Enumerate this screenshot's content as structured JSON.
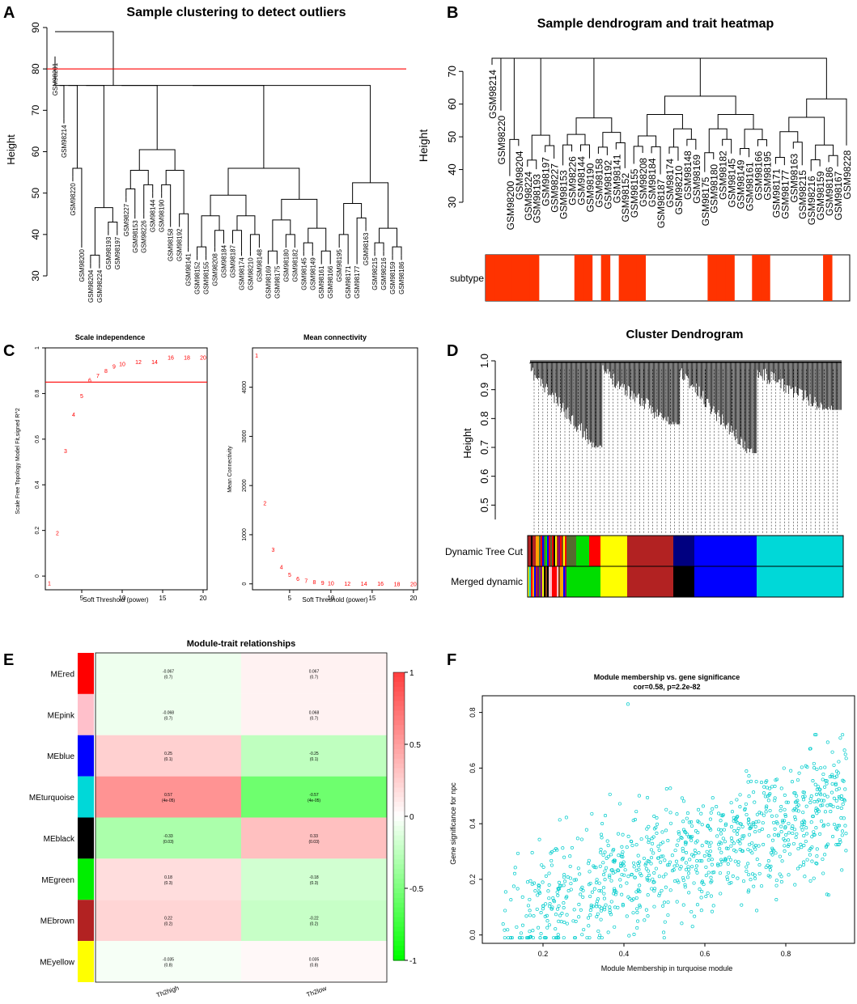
{
  "colors": {
    "red": "#ff0000",
    "orange_red": "#ff3300",
    "turquoise": "#00d8d8",
    "blue": "#0000ff",
    "brown": "#b22222",
    "yellow": "#ffff00",
    "green": "#00dd00",
    "black": "#000000",
    "pink": "#ffc0cb"
  },
  "panels": {
    "a": "A",
    "b": "B",
    "c": "C",
    "d": "D",
    "e": "E",
    "f": "F"
  },
  "panel_a": {
    "title": "Sample clustering to detect outliers",
    "ylabel": "Height",
    "yticks": [
      30,
      40,
      50,
      60,
      70,
      80,
      90
    ],
    "cut_height": 80,
    "leaves": [
      {
        "label": "GSM98201",
        "h": 83
      },
      {
        "label": "GSM98214",
        "h": 68
      },
      {
        "label": "GSM98220",
        "h": 54
      },
      {
        "label": "GSM98200",
        "h": 38
      },
      {
        "label": "GSM98204",
        "h": 33
      },
      {
        "label": "GSM98224",
        "h": 33
      },
      {
        "label": "GSM98193",
        "h": 41
      },
      {
        "label": "GSM98197",
        "h": 41
      },
      {
        "label": "GSM98227",
        "h": 49
      },
      {
        "label": "GSM98153",
        "h": 45
      },
      {
        "label": "GSM98226",
        "h": 45
      },
      {
        "label": "GSM98144",
        "h": 50
      },
      {
        "label": "GSM98190",
        "h": 50
      },
      {
        "label": "GSM98158",
        "h": 43
      },
      {
        "label": "GSM98192",
        "h": 43
      },
      {
        "label": "GSM98141",
        "h": 37
      },
      {
        "label": "GSM98152",
        "h": 35
      },
      {
        "label": "GSM98155",
        "h": 35
      },
      {
        "label": "GSM98208",
        "h": 37
      },
      {
        "label": "GSM98184",
        "h": 39
      },
      {
        "label": "GSM98187",
        "h": 39
      },
      {
        "label": "GSM98174",
        "h": 36
      },
      {
        "label": "GSM98210",
        "h": 36
      },
      {
        "label": "GSM98148",
        "h": 38
      },
      {
        "label": "GSM98169",
        "h": 34
      },
      {
        "label": "GSM98175",
        "h": 34
      },
      {
        "label": "GSM98180",
        "h": 38
      },
      {
        "label": "GSM98182",
        "h": 38
      },
      {
        "label": "GSM98145",
        "h": 36
      },
      {
        "label": "GSM98149",
        "h": 36
      },
      {
        "label": "GSM98161",
        "h": 34
      },
      {
        "label": "GSM98166",
        "h": 34
      },
      {
        "label": "GSM98195",
        "h": 38
      },
      {
        "label": "GSM98171",
        "h": 34
      },
      {
        "label": "GSM98177",
        "h": 34
      },
      {
        "label": "GSM98163",
        "h": 42
      },
      {
        "label": "GSM98215",
        "h": 36
      },
      {
        "label": "GSM98216",
        "h": 36
      },
      {
        "label": "GSM98159",
        "h": 35
      },
      {
        "label": "GSM98186",
        "h": 35
      }
    ]
  },
  "panel_b": {
    "title": "Sample dendrogram and trait heatmap",
    "ylabel": "Height",
    "yticks": [
      30,
      40,
      50,
      60,
      70
    ],
    "trait_label": "subtype",
    "leaves": [
      "GSM98214",
      "GSM98220",
      "GSM98200",
      "GSM98204",
      "GSM98224",
      "GSM98193",
      "GSM98197",
      "GSM98227",
      "GSM98153",
      "GSM98226",
      "GSM98144",
      "GSM98190",
      "GSM98158",
      "GSM98192",
      "GSM98141",
      "GSM98152",
      "GSM98155",
      "GSM98208",
      "GSM98184",
      "GSM98187",
      "GSM98174",
      "GSM98210",
      "GSM98148",
      "GSM98169",
      "GSM98175",
      "GSM98180",
      "GSM98182",
      "GSM98145",
      "GSM98149",
      "GSM98161",
      "GSM98166",
      "GSM98195",
      "GSM98171",
      "GSM98177",
      "GSM98163",
      "GSM98215",
      "GSM98216",
      "GSM98159",
      "GSM98186",
      "GSM98167",
      "GSM98228"
    ],
    "subtype_red": [
      1,
      1,
      1,
      1,
      1,
      1,
      0,
      0,
      0,
      0,
      1,
      1,
      0,
      1,
      0,
      1,
      1,
      1,
      0,
      0,
      0,
      0,
      0,
      0,
      0,
      1,
      1,
      1,
      0,
      0,
      1,
      1,
      0,
      0,
      0,
      0,
      0,
      0,
      1,
      0,
      0
    ]
  },
  "panel_c": {
    "left": {
      "title": "Scale independence",
      "xlabel": "Soft Threshold (power)",
      "ylabel": "Scale Free Topology Model Fit,signed R^2",
      "cutoff": 0.85,
      "xticks": [
        5,
        10,
        15,
        20
      ],
      "yticks": [
        0.0,
        0.2,
        0.4,
        0.6,
        0.8,
        1.0
      ],
      "points": [
        [
          1,
          -0.03
        ],
        [
          2,
          0.19
        ],
        [
          3,
          0.55
        ],
        [
          4,
          0.71
        ],
        [
          5,
          0.79
        ],
        [
          6,
          0.86
        ],
        [
          7,
          0.88
        ],
        [
          8,
          0.9
        ],
        [
          9,
          0.92
        ],
        [
          10,
          0.93
        ],
        [
          12,
          0.94
        ],
        [
          14,
          0.94
        ],
        [
          16,
          0.96
        ],
        [
          18,
          0.96
        ],
        [
          20,
          0.96
        ]
      ]
    },
    "right": {
      "title": "Mean connectivity",
      "xlabel": "Soft Threshold (power)",
      "ylabel": "Mean Connectivity",
      "xticks": [
        5,
        10,
        15,
        20
      ],
      "yticks": [
        0,
        1000,
        2000,
        3000,
        4000
      ],
      "points": [
        [
          1,
          4650
        ],
        [
          2,
          1650
        ],
        [
          3,
          700
        ],
        [
          4,
          350
        ],
        [
          5,
          190
        ],
        [
          6,
          110
        ],
        [
          7,
          70
        ],
        [
          8,
          45
        ],
        [
          9,
          30
        ],
        [
          10,
          22
        ],
        [
          12,
          15
        ],
        [
          14,
          10
        ],
        [
          16,
          8
        ],
        [
          18,
          6
        ],
        [
          20,
          5
        ]
      ]
    }
  },
  "panel_d": {
    "title": "Cluster Dendrogram",
    "ylabel": "Height",
    "yticks": [
      0.5,
      0.6,
      0.7,
      0.8,
      0.9,
      1.0
    ],
    "row_labels": [
      "Dynamic Tree Cut",
      "Merged dynamic"
    ]
  },
  "panel_e": {
    "title": "Module-trait relationships",
    "columns": [
      "Th2high",
      "Th2low"
    ],
    "legend_ticks": [
      "1",
      "0.5",
      "0",
      "-0.5",
      "-1"
    ],
    "rows": [
      {
        "label": "MEred",
        "color": "#ff0000",
        "v1": "-0.067",
        "p1": "(0.7)",
        "v2": "0.067",
        "p2": "(0.7)",
        "c1": -0.067,
        "c2": 0.067
      },
      {
        "label": "MEpink",
        "color": "#ffc0cb",
        "v1": "-0.068",
        "p1": "(0.7)",
        "v2": "0.068",
        "p2": "(0.7)",
        "c1": -0.068,
        "c2": 0.068
      },
      {
        "label": "MEblue",
        "color": "#0000ff",
        "v1": "0.25",
        "p1": "(0.1)",
        "v2": "-0.25",
        "p2": "(0.1)",
        "c1": 0.25,
        "c2": -0.25
      },
      {
        "label": "MEturquoise",
        "color": "#00d8d8",
        "v1": "0.57",
        "p1": "(4e-05)",
        "v2": "-0.57",
        "p2": "(4e-05)",
        "c1": 0.57,
        "c2": -0.57
      },
      {
        "label": "MEblack",
        "color": "#000000",
        "v1": "-0.33",
        "p1": "(0.03)",
        "v2": "0.33",
        "p2": "(0.03)",
        "c1": -0.33,
        "c2": 0.33
      },
      {
        "label": "MEgreen",
        "color": "#00ee00",
        "v1": "0.18",
        "p1": "(0.3)",
        "v2": "-0.18",
        "p2": "(0.3)",
        "c1": 0.18,
        "c2": -0.18
      },
      {
        "label": "MEbrown",
        "color": "#b22222",
        "v1": "0.22",
        "p1": "(0.2)",
        "v2": "-0.22",
        "p2": "(0.2)",
        "c1": 0.22,
        "c2": -0.22
      },
      {
        "label": "MEyellow",
        "color": "#ffff00",
        "v1": "-0.035",
        "p1": "(0.8)",
        "v2": "0.035",
        "p2": "(0.8)",
        "c1": -0.035,
        "c2": 0.035
      }
    ]
  },
  "panel_f": {
    "title": "Module membership vs. gene significance",
    "subtitle": "cor=0.58, p=2.2e-82",
    "xlabel": "Module Membership in turquoise module",
    "ylabel": "Gene significance for npc",
    "xticks": [
      0.2,
      0.4,
      0.6,
      0.8
    ],
    "yticks": [
      0.0,
      0.2,
      0.4,
      0.6,
      0.8
    ],
    "xlim": [
      0.05,
      0.97
    ],
    "ylim": [
      -0.03,
      0.86
    ],
    "n_points": 950,
    "cor": 0.58
  },
  "chart_data": [
    {
      "type": "line",
      "title": "Scale independence",
      "xlabel": "Soft Threshold (power)",
      "ylabel": "Scale Free Topology Model Fit,signed R^2",
      "x": [
        1,
        2,
        3,
        4,
        5,
        6,
        7,
        8,
        9,
        10,
        12,
        14,
        16,
        18,
        20
      ],
      "values": [
        -0.03,
        0.19,
        0.55,
        0.71,
        0.79,
        0.86,
        0.88,
        0.9,
        0.92,
        0.93,
        0.94,
        0.94,
        0.96,
        0.96,
        0.96
      ],
      "ylim": [
        0,
        1
      ]
    },
    {
      "type": "line",
      "title": "Mean connectivity",
      "xlabel": "Soft Threshold (power)",
      "ylabel": "Mean Connectivity",
      "x": [
        1,
        2,
        3,
        4,
        5,
        6,
        7,
        8,
        9,
        10,
        12,
        14,
        16,
        18,
        20
      ],
      "values": [
        4650,
        1650,
        700,
        350,
        190,
        110,
        70,
        45,
        30,
        22,
        15,
        10,
        8,
        6,
        5
      ]
    },
    {
      "type": "heatmap",
      "title": "Module-trait relationships",
      "categories": [
        "Th2high",
        "Th2low"
      ],
      "series": [
        {
          "name": "MEred",
          "values": [
            -0.067,
            0.067
          ]
        },
        {
          "name": "MEpink",
          "values": [
            -0.068,
            0.068
          ]
        },
        {
          "name": "MEblue",
          "values": [
            0.25,
            -0.25
          ]
        },
        {
          "name": "MEturquoise",
          "values": [
            0.57,
            -0.57
          ]
        },
        {
          "name": "MEblack",
          "values": [
            -0.33,
            0.33
          ]
        },
        {
          "name": "MEgreen",
          "values": [
            0.18,
            -0.18
          ]
        },
        {
          "name": "MEbrown",
          "values": [
            0.22,
            -0.22
          ]
        },
        {
          "name": "MEyellow",
          "values": [
            -0.035,
            0.035
          ]
        }
      ]
    },
    {
      "type": "scatter",
      "title": "Module membership vs. gene significance",
      "xlabel": "Module Membership in turquoise module",
      "ylabel": "Gene significance for npc",
      "cor": 0.58,
      "p": "2.2e-82"
    }
  ]
}
